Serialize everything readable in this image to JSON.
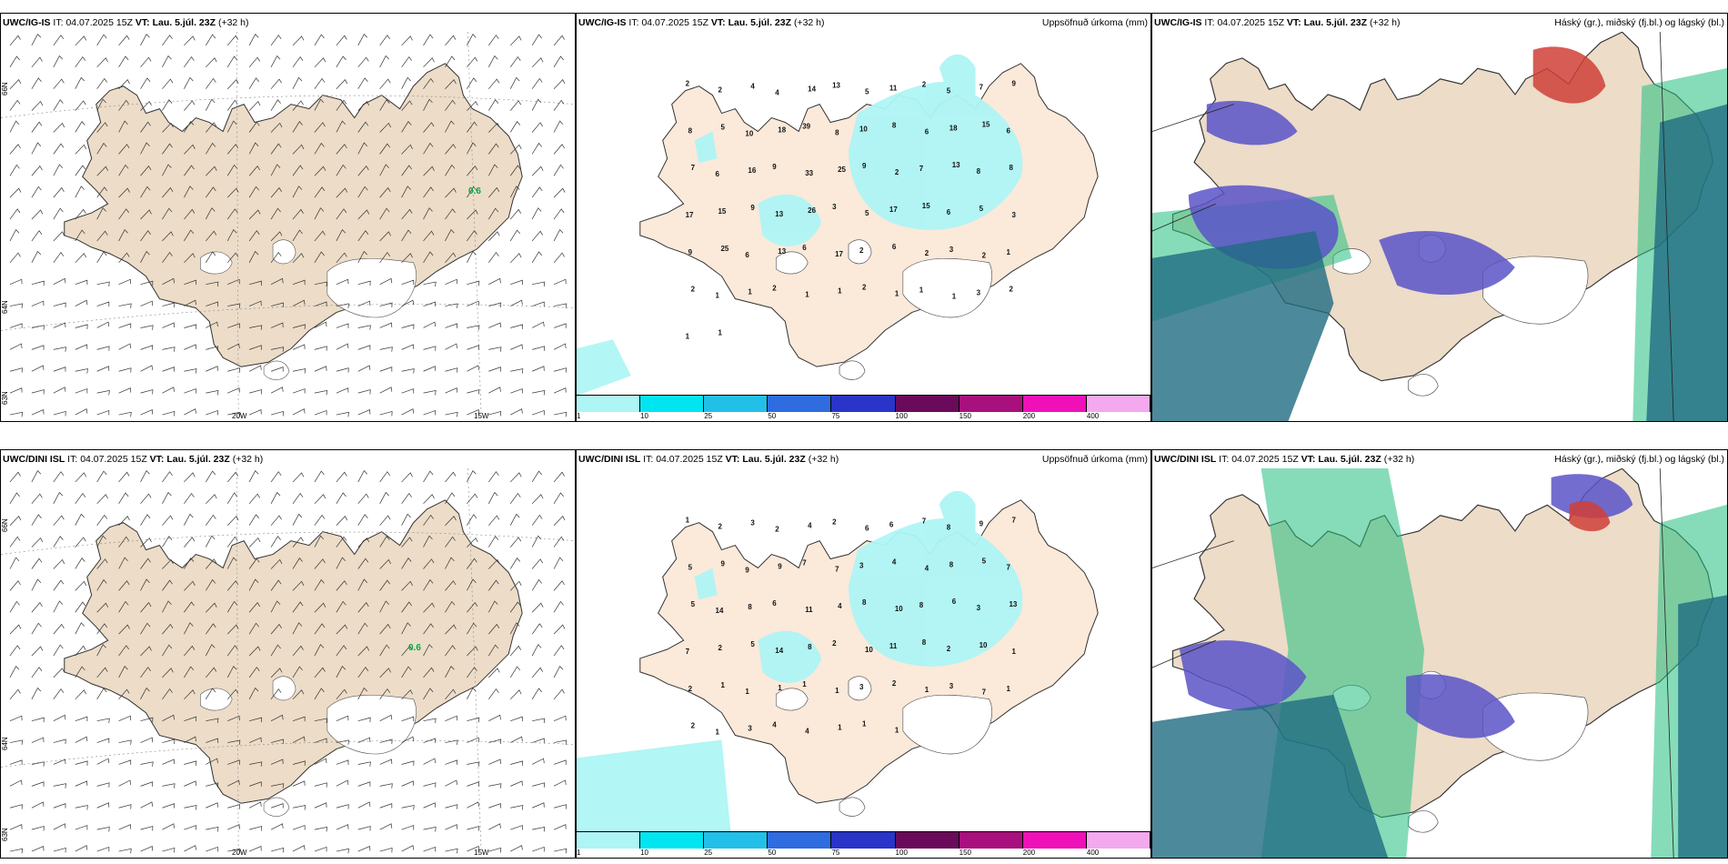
{
  "rows": [
    {
      "panels": [
        {
          "model": "UWC/IG-IS",
          "it_label": "IT:",
          "it": "04.07.2025 15Z",
          "vt_label": "VT:",
          "vt": "Lau. 5.júl. 23Z",
          "lead": "(+32 h)",
          "right": "",
          "annotation": "0.6"
        },
        {
          "model": "UWC/IG-IS",
          "it_label": "IT:",
          "it": "04.07.2025 15Z",
          "vt_label": "VT:",
          "vt": "Lau. 5.júl. 23Z",
          "lead": "(+32 h)",
          "right": "Uppsöfnuð úrkoma (mm)"
        },
        {
          "model": "UWC/IG-IS",
          "it_label": "IT:",
          "it": "04.07.2025 15Z",
          "vt_label": "VT:",
          "vt": "Lau. 5.júl. 23Z",
          "lead": "(+32 h)",
          "right": "Háský (gr.), miðský (fj.bl.) og lágský (bl.)"
        }
      ]
    },
    {
      "panels": [
        {
          "model": "UWC/DINI ISL",
          "it_label": "IT:",
          "it": "04.07.2025 15Z",
          "vt_label": "VT:",
          "vt": "Lau. 5.júl. 23Z",
          "lead": "(+32 h)",
          "right": "",
          "annotation": "0.6"
        },
        {
          "model": "UWC/DINI ISL",
          "it_label": "IT:",
          "it": "04.07.2025 15Z",
          "vt_label": "VT:",
          "vt": "Lau. 5.júl. 23Z",
          "lead": "(+32 h)",
          "right": "Uppsöfnuð úrkoma (mm)"
        },
        {
          "model": "UWC/DINI ISL",
          "it_label": "IT:",
          "it": "04.07.2025 15Z",
          "vt_label": "VT:",
          "vt": "Lau. 5.júl. 23Z",
          "lead": "(+32 h)",
          "right": "Háský (gr.), miðský (fj.bl.) og lágský (bl.)"
        }
      ]
    }
  ],
  "axes": {
    "lat_top": "66N",
    "lat_bottom": "64N",
    "lat_low": "63N",
    "lon_left": "20W",
    "lon_right": "15W"
  },
  "precip_scale": {
    "labels": [
      "1",
      "10",
      "25",
      "50",
      "75",
      "100",
      "150",
      "200",
      "400"
    ],
    "colors": [
      "#aef5f5",
      "#00e5f0",
      "#22c0e8",
      "#2e6ce0",
      "#2a34c8",
      "#6a0a5a",
      "#a8107e",
      "#f010b8",
      "#f4a8ee"
    ]
  },
  "precip_values_top": [
    "2",
    "2",
    "4",
    "4",
    "14",
    "13",
    "5",
    "11",
    "2",
    "5",
    "7",
    "9",
    "8",
    "5",
    "10",
    "18",
    "39",
    "8",
    "10",
    "8",
    "6",
    "18",
    "15",
    "6",
    "7",
    "6",
    "16",
    "9",
    "33",
    "25",
    "9",
    "2",
    "7",
    "13",
    "8",
    "8",
    "17",
    "15",
    "9",
    "13",
    "26",
    "3",
    "5",
    "17",
    "15",
    "6",
    "5",
    "3",
    "9",
    "25",
    "6",
    "13",
    "6",
    "17",
    "2",
    "6",
    "2",
    "3",
    "2",
    "1",
    "2",
    "1",
    "1",
    "2",
    "1",
    "1",
    "2",
    "1",
    "1",
    "1",
    "3",
    "2",
    "1",
    "1"
  ],
  "precip_values_bottom": [
    "1",
    "2",
    "3",
    "2",
    "4",
    "2",
    "6",
    "6",
    "7",
    "8",
    "9",
    "7",
    "5",
    "9",
    "9",
    "9",
    "7",
    "7",
    "3",
    "4",
    "4",
    "8",
    "5",
    "7",
    "5",
    "14",
    "8",
    "6",
    "11",
    "4",
    "8",
    "10",
    "8",
    "6",
    "3",
    "13",
    "7",
    "2",
    "5",
    "14",
    "8",
    "2",
    "10",
    "11",
    "8",
    "2",
    "10",
    "1",
    "2",
    "1",
    "1",
    "1",
    "1",
    "1",
    "3",
    "2",
    "1",
    "3",
    "7",
    "1",
    "2",
    "1",
    "3",
    "4",
    "4",
    "1",
    "1",
    "1"
  ],
  "clouds_legend": {
    "high": "green",
    "mid": "dark blue",
    "low": "blue"
  },
  "colors": {
    "land": "#ecdcc8",
    "land_precip": "#fbe9da",
    "precip_light": "#aef5f5",
    "high_cloud": "#22c080",
    "mid_cloud": "#5a54c8",
    "low_cloud": "#d04038",
    "sea_dark": "#1f6c82"
  }
}
